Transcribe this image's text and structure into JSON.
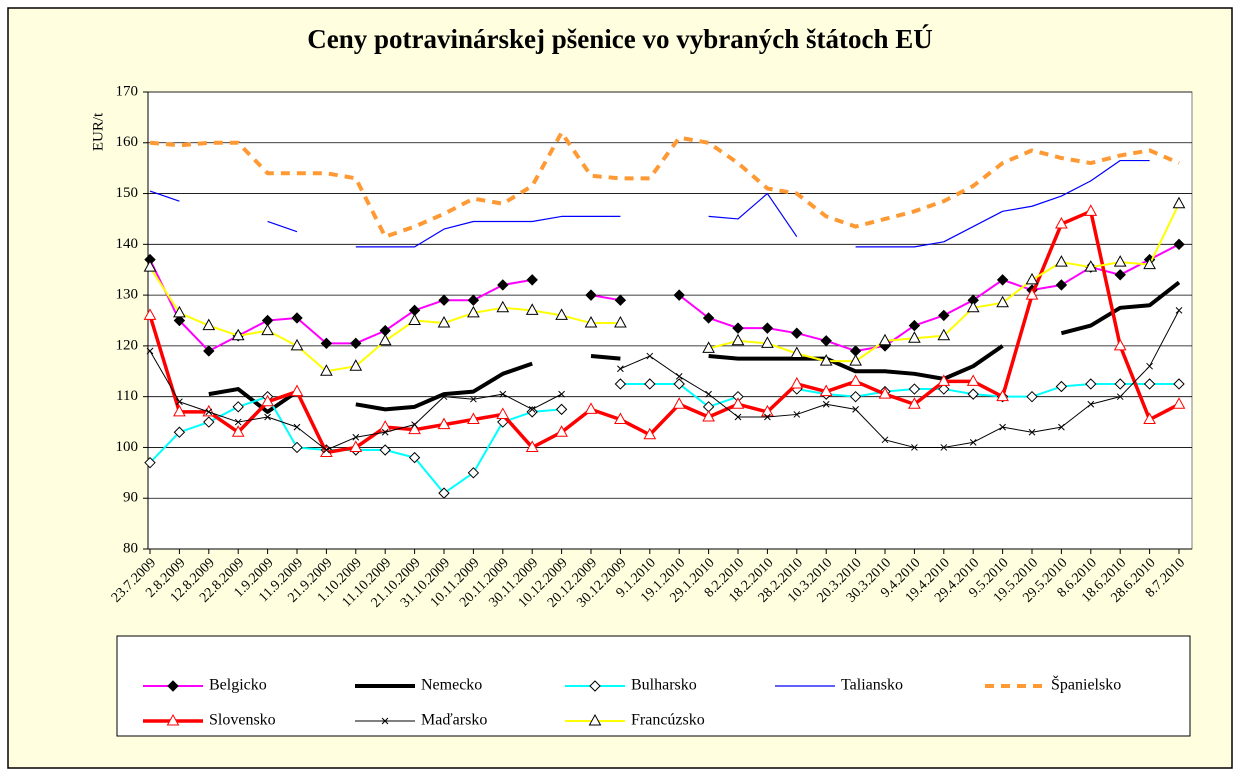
{
  "chart_data": {
    "type": "line",
    "title": "Ceny potravinárskej pšenice vo vybraných štátoch EÚ",
    "y_label": "EUR/t",
    "categories": [
      "23.7.2009",
      "2.8.2009",
      "12.8.2009",
      "22.8.2009",
      "1.9.2009",
      "11.9.2009",
      "21.9.2009",
      "1.10.2009",
      "11.10.2009",
      "21.10.2009",
      "31.10.2009",
      "10.11.2009",
      "20.11.2009",
      "30.11.2009",
      "10.12.2009",
      "20.12.2009",
      "30.12.2009",
      "9.1.2010",
      "19.1.2010",
      "29.1.2010",
      "8.2.2010",
      "18.2.2010",
      "28.2.2010",
      "10.3.2010",
      "20.3.2010",
      "30.3.2010",
      "9.4.2010",
      "19.4.2010",
      "29.4.2010",
      "9.5.2010",
      "19.5.2010",
      "29.5.2010",
      "8.6.2010",
      "18.6.2010",
      "28.6.2010",
      "8.7.2010"
    ],
    "ylim": [
      80,
      170
    ],
    "yticks": [
      80,
      90,
      100,
      110,
      120,
      130,
      140,
      150,
      160,
      170
    ],
    "grid": true,
    "legend": "bottom",
    "series": [
      {
        "name": "Belgicko",
        "color": "#ff00ff",
        "width": 2,
        "marker": "diamond",
        "marker_color": "#000000",
        "marker_fill": "#000000",
        "values": [
          137,
          125,
          119,
          122,
          125,
          125.5,
          120.5,
          120.5,
          123,
          127,
          129,
          129,
          132,
          133,
          null,
          130,
          129,
          null,
          130,
          125.5,
          123.5,
          123.5,
          122.5,
          121,
          119,
          120,
          124,
          126,
          129,
          133,
          131,
          132,
          135.5,
          134,
          137,
          140
        ]
      },
      {
        "name": "Nemecko",
        "color": "#000000",
        "width": 4,
        "marker": "none",
        "values": [
          null,
          null,
          110.5,
          111.5,
          107,
          111,
          null,
          108.5,
          107.5,
          108,
          110.5,
          111,
          114.5,
          116.5,
          null,
          118,
          117.5,
          null,
          null,
          118,
          117.5,
          117.5,
          117.5,
          117.5,
          115,
          115,
          114.5,
          113.5,
          116,
          120,
          null,
          122.5,
          124,
          127.5,
          128,
          132.5
        ]
      },
      {
        "name": "Bulharsko",
        "color": "#00ffff",
        "width": 2,
        "marker": "diamond",
        "marker_color": "#000000",
        "marker_fill": "#ffffff",
        "values": [
          97,
          103,
          105,
          108,
          110,
          100,
          99.5,
          99.5,
          99.5,
          98,
          91,
          95,
          105,
          107,
          107.5,
          null,
          112.5,
          112.5,
          112.5,
          108,
          110,
          null,
          111.5,
          110.5,
          110,
          111,
          111.5,
          111.5,
          110.5,
          110,
          110,
          112,
          112.5,
          112.5,
          112.5,
          112.5
        ]
      },
      {
        "name": "Taliansko",
        "color": "#0000ff",
        "width": 1.2,
        "marker": "none",
        "values": [
          150.5,
          148.5,
          null,
          null,
          144.5,
          142.5,
          null,
          139.5,
          139.5,
          139.5,
          143,
          144.5,
          144.5,
          144.5,
          145.5,
          145.5,
          145.5,
          null,
          null,
          145.5,
          145,
          150,
          141.5,
          null,
          139.5,
          139.5,
          139.5,
          140.5,
          143.5,
          146.5,
          147.5,
          149.5,
          152.5,
          156.5,
          156.5,
          null
        ]
      },
      {
        "name": "Španielsko",
        "color": "#ff9933",
        "width": 4,
        "dash": "9 7",
        "marker": "none",
        "values": [
          160,
          159.5,
          160,
          160,
          154,
          154,
          154,
          153,
          141.5,
          143.5,
          146,
          149,
          148,
          151.5,
          162,
          153.5,
          153,
          153,
          161,
          160,
          156,
          151,
          150,
          145.5,
          143.5,
          145,
          146.5,
          148.5,
          151.5,
          156,
          158.5,
          157,
          156,
          157.5,
          158.5,
          156
        ]
      },
      {
        "name": "Slovensko",
        "color": "#ff0000",
        "width": 3.5,
        "marker": "triangle",
        "marker_color": "#ff0000",
        "marker_fill": "#ffffff",
        "values": [
          126,
          107,
          107,
          103,
          109,
          111,
          99,
          100,
          104,
          103.5,
          104.5,
          105.5,
          106.5,
          100,
          103,
          107.5,
          105.5,
          102.5,
          108.5,
          106,
          108.5,
          107,
          112.5,
          111,
          113,
          110.5,
          108.5,
          113,
          113,
          110,
          130,
          144,
          146.5,
          120,
          105.5,
          108.5
        ]
      },
      {
        "name": "Maďarsko",
        "color": "#000000",
        "width": 1,
        "marker": "x",
        "marker_color": "#000000",
        "marker_fill": "none",
        "values": [
          119,
          109,
          107,
          105,
          106,
          104,
          99.5,
          102,
          103,
          104.5,
          110,
          109.5,
          110.5,
          107.5,
          110.5,
          null,
          115.5,
          118,
          114,
          110.5,
          106,
          106,
          106.5,
          108.5,
          107.5,
          101.5,
          100,
          100,
          101,
          104,
          103,
          104,
          108.5,
          110,
          116,
          127
        ]
      },
      {
        "name": "Francúzsko",
        "color": "#ffff00",
        "width": 2,
        "marker": "triangle",
        "marker_color": "#000000",
        "marker_fill": "#ffffff",
        "values": [
          135.5,
          126.5,
          124,
          122,
          123,
          120,
          115,
          116,
          121,
          125,
          124.5,
          126.5,
          127.5,
          127,
          126,
          124.5,
          124.5,
          null,
          null,
          119.5,
          121,
          120.5,
          118.5,
          117,
          117,
          121,
          121.5,
          122,
          127.5,
          128.5,
          133,
          136.5,
          135.5,
          136.5,
          136,
          148
        ]
      }
    ]
  }
}
